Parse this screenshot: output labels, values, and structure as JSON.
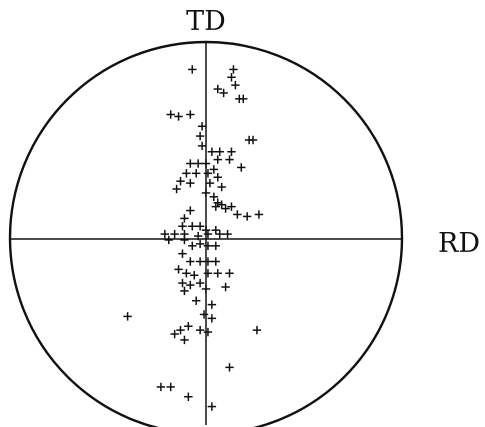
{
  "figure": {
    "type": "pole-figure",
    "labels": {
      "top": "TD",
      "right": "RD"
    },
    "poles": [
      [
        -0.07,
        0.86
      ],
      [
        0.14,
        0.86
      ],
      [
        0.13,
        0.82
      ],
      [
        0.15,
        0.78
      ],
      [
        0.06,
        0.76
      ],
      [
        0.09,
        0.74
      ],
      [
        0.17,
        0.71
      ],
      [
        0.19,
        0.71
      ],
      [
        -0.18,
        0.63
      ],
      [
        -0.14,
        0.62
      ],
      [
        -0.08,
        0.63
      ],
      [
        0.22,
        0.5
      ],
      [
        0.24,
        0.5
      ],
      [
        -0.02,
        0.57
      ],
      [
        -0.03,
        0.52
      ],
      [
        -0.02,
        0.47
      ],
      [
        0.03,
        0.44
      ],
      [
        0.07,
        0.44
      ],
      [
        0.13,
        0.44
      ],
      [
        0.06,
        0.4
      ],
      [
        0.12,
        0.4
      ],
      [
        -0.08,
        0.38
      ],
      [
        -0.04,
        0.38
      ],
      [
        0.0,
        0.38
      ],
      [
        0.04,
        0.35
      ],
      [
        0.18,
        0.36
      ],
      [
        -0.1,
        0.33
      ],
      [
        -0.05,
        0.33
      ],
      [
        0.01,
        0.33
      ],
      [
        0.06,
        0.31
      ],
      [
        -0.13,
        0.29
      ],
      [
        -0.08,
        0.28
      ],
      [
        0.02,
        0.28
      ],
      [
        0.08,
        0.26
      ],
      [
        -0.15,
        0.25
      ],
      [
        0.0,
        0.23
      ],
      [
        0.04,
        0.21
      ],
      [
        0.06,
        0.18
      ],
      [
        0.05,
        0.16
      ],
      [
        0.08,
        0.17
      ],
      [
        0.1,
        0.15
      ],
      [
        0.13,
        0.16
      ],
      [
        0.16,
        0.12
      ],
      [
        0.21,
        0.11
      ],
      [
        0.27,
        0.12
      ],
      [
        -0.08,
        0.14
      ],
      [
        -0.11,
        0.1
      ],
      [
        -0.12,
        0.06
      ],
      [
        -0.07,
        0.06
      ],
      [
        -0.03,
        0.06
      ],
      [
        0.0,
        0.04
      ],
      [
        0.05,
        0.04
      ],
      [
        -0.21,
        0.02
      ],
      [
        -0.16,
        0.02
      ],
      [
        -0.11,
        0.02
      ],
      [
        -0.04,
        0.01
      ],
      [
        0.01,
        0.02
      ],
      [
        0.07,
        0.02
      ],
      [
        0.11,
        0.02
      ],
      [
        -0.19,
        -0.01
      ],
      [
        -0.11,
        -0.01
      ],
      [
        -0.07,
        -0.04
      ],
      [
        -0.03,
        -0.03
      ],
      [
        0.01,
        -0.04
      ],
      [
        0.05,
        -0.04
      ],
      [
        -0.12,
        -0.08
      ],
      [
        -0.08,
        -0.12
      ],
      [
        -0.03,
        -0.12
      ],
      [
        0.01,
        -0.12
      ],
      [
        0.05,
        -0.12
      ],
      [
        -0.14,
        -0.16
      ],
      [
        -0.1,
        -0.18
      ],
      [
        -0.06,
        -0.19
      ],
      [
        0.01,
        -0.18
      ],
      [
        0.06,
        -0.18
      ],
      [
        0.12,
        -0.18
      ],
      [
        -0.12,
        -0.23
      ],
      [
        -0.08,
        -0.24
      ],
      [
        -0.03,
        -0.23
      ],
      [
        -0.11,
        -0.27
      ],
      [
        0.0,
        -0.26
      ],
      [
        0.1,
        -0.25
      ],
      [
        -0.05,
        -0.32
      ],
      [
        0.03,
        -0.34
      ],
      [
        -0.4,
        -0.4
      ],
      [
        -0.01,
        -0.39
      ],
      [
        0.03,
        -0.41
      ],
      [
        -0.09,
        -0.45
      ],
      [
        -0.13,
        -0.47
      ],
      [
        -0.16,
        -0.49
      ],
      [
        -0.03,
        -0.47
      ],
      [
        0.01,
        -0.48
      ],
      [
        -0.11,
        -0.52
      ],
      [
        0.26,
        -0.47
      ],
      [
        0.12,
        -0.66
      ],
      [
        -0.23,
        -0.76
      ],
      [
        -0.18,
        -0.76
      ],
      [
        -0.09,
        -0.81
      ],
      [
        0.03,
        -0.86
      ]
    ]
  }
}
